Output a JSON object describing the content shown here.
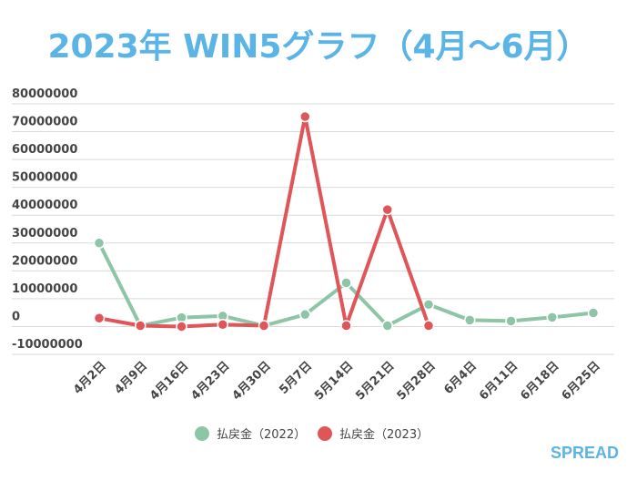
{
  "chart_data": {
    "type": "line",
    "title": "2023年 WIN5グラフ（4月～6月）",
    "xlabel": "",
    "ylabel": "",
    "ylim": [
      -10000000,
      80000000
    ],
    "yticks": [
      80000000,
      70000000,
      60000000,
      50000000,
      40000000,
      30000000,
      20000000,
      10000000,
      0,
      -10000000
    ],
    "grid": true,
    "legend_position": "bottom",
    "categories": [
      "4月2日",
      "4月9日",
      "4月16日",
      "4月23日",
      "4月30日",
      "5月7日",
      "5月14日",
      "5月21日",
      "5月28日",
      "6月4日",
      "6月11日",
      "6月18日",
      "6月25日"
    ],
    "series": [
      {
        "name": "払戻金（2022）",
        "color": "#8dc5a6",
        "values": [
          30000000,
          300000,
          3200000,
          3800000,
          300000,
          4300000,
          15700000,
          300000,
          7900000,
          2300000,
          2000000,
          3300000,
          4900000
        ]
      },
      {
        "name": "払戻金（2023）",
        "color": "#df5558",
        "values": [
          3000000,
          300000,
          0,
          700000,
          300000,
          75400000,
          300000,
          42000000,
          300000,
          null,
          null,
          null,
          null
        ]
      }
    ]
  },
  "brand": "SPREAD"
}
